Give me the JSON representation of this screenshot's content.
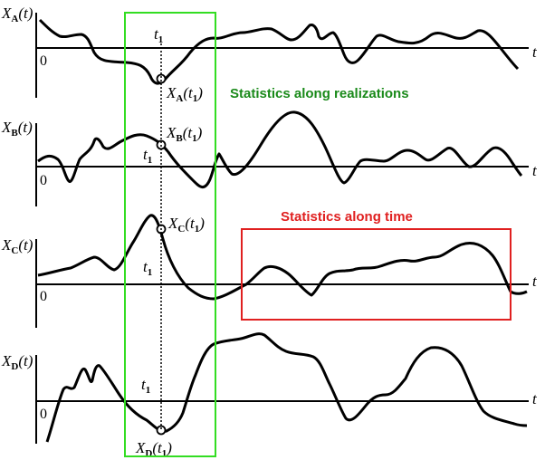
{
  "panels": [
    {
      "id": "A",
      "y_label": "X",
      "y_sub": "A",
      "y_arg": "(t)",
      "zero": "0",
      "t_axis": "t",
      "t1": "t",
      "t1_sub": "1",
      "point_base": "X",
      "point_sub": "A",
      "point_open": "(t",
      "point_sub2": "1",
      "point_close": ")"
    },
    {
      "id": "B",
      "y_label": "X",
      "y_sub": "B",
      "y_arg": "(t)",
      "zero": "0",
      "t_axis": "t",
      "t1": "t",
      "t1_sub": "1",
      "point_base": "X",
      "point_sub": "B",
      "point_open": "(t",
      "point_sub2": "1",
      "point_close": ")"
    },
    {
      "id": "C",
      "y_label": "X",
      "y_sub": "C",
      "y_arg": "(t)",
      "zero": "0",
      "t_axis": "t",
      "t1": "t",
      "t1_sub": "1",
      "point_base": "X",
      "point_sub": "C",
      "point_open": "(t",
      "point_sub2": "1",
      "point_close": ")"
    },
    {
      "id": "D",
      "y_label": "X",
      "y_sub": "D",
      "y_arg": "(t)",
      "zero": "0",
      "t_axis": "t",
      "t1": "t",
      "t1_sub": "1",
      "point_base": "X",
      "point_sub": "D",
      "point_open": "(t",
      "point_sub2": "1",
      "point_close": ")"
    }
  ],
  "annotations": {
    "realizations": "Statistics along realizations",
    "time": "Statistics along time"
  },
  "colors": {
    "realizations_box": "#33dd22",
    "realizations_text": "#1a8a1a",
    "time_box": "#e02020",
    "time_text": "#e02020",
    "curve": "#000000"
  }
}
